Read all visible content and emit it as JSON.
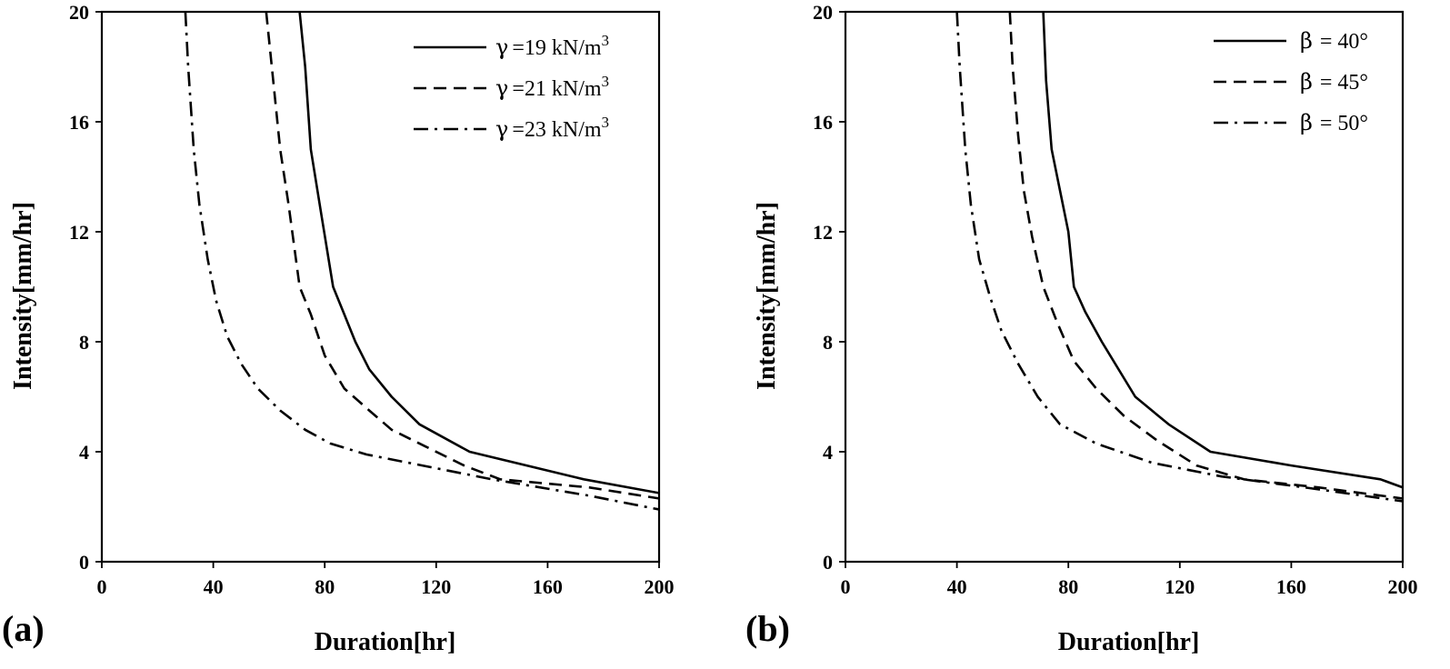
{
  "chart_data": [
    {
      "type": "line",
      "panel_label": "(a)",
      "xlabel": "Duration[hr]",
      "ylabel": "Intensity[mm/hr]",
      "xlim": [
        0,
        200
      ],
      "ylim": [
        0,
        20
      ],
      "xticks": [
        0,
        40,
        80,
        120,
        160,
        200
      ],
      "yticks": [
        0,
        4,
        8,
        12,
        16,
        20
      ],
      "grid": false,
      "legend_position": "top-right",
      "series": [
        {
          "name": "=19 kN/m",
          "symbol": "γ",
          "superscript": "3",
          "dash": "solid",
          "x": [
            71,
            73,
            75,
            79,
            83,
            87,
            91,
            96,
            104,
            114,
            132,
            173,
            200
          ],
          "y": [
            20,
            18,
            15,
            12.5,
            10,
            9,
            8,
            7,
            6,
            5,
            4,
            3,
            2.5
          ]
        },
        {
          "name": "=21 kN/m",
          "symbol": "γ",
          "superscript": "3",
          "dash": "dashed",
          "x": [
            59,
            61,
            64,
            67,
            71,
            75,
            80,
            87,
            96,
            104,
            116,
            130,
            143,
            175,
            200
          ],
          "y": [
            20,
            18,
            15,
            13,
            10,
            9,
            7.5,
            6.3,
            5.5,
            4.8,
            4.2,
            3.5,
            3.0,
            2.7,
            2.3
          ]
        },
        {
          "name": "=23 kN/m",
          "symbol": "γ",
          "superscript": "3",
          "dash": "dashdot",
          "x": [
            30,
            31,
            33,
            35,
            38,
            41,
            45,
            50,
            56,
            64,
            73,
            82,
            95,
            115,
            140,
            175,
            200
          ],
          "y": [
            20,
            18,
            15,
            13,
            11,
            9.5,
            8.2,
            7.2,
            6.3,
            5.5,
            4.8,
            4.3,
            3.9,
            3.5,
            3.0,
            2.4,
            1.9
          ]
        }
      ]
    },
    {
      "type": "line",
      "panel_label": "(b)",
      "xlabel": "Duration[hr]",
      "ylabel": "Intensity[mm/hr]",
      "xlim": [
        0,
        200
      ],
      "ylim": [
        0,
        20
      ],
      "xticks": [
        0,
        40,
        80,
        120,
        160,
        200
      ],
      "yticks": [
        0,
        4,
        8,
        12,
        16,
        20
      ],
      "grid": false,
      "legend_position": "top-right",
      "series": [
        {
          "name": "= 40°",
          "symbol": "β",
          "dash": "solid",
          "x": [
            71,
            72,
            74,
            77,
            80,
            82,
            86,
            92,
            104,
            116,
            131,
            160,
            192,
            200
          ],
          "y": [
            20,
            17.5,
            15,
            13.5,
            12,
            10,
            9.1,
            8,
            6,
            5,
            4,
            3.5,
            3,
            2.7
          ]
        },
        {
          "name": "= 45°",
          "symbol": "β",
          "dash": "dashed",
          "x": [
            59,
            60,
            62,
            64,
            67,
            71,
            76,
            82,
            90,
            100,
            112,
            126,
            143,
            170,
            200
          ],
          "y": [
            20,
            18,
            15.5,
            13.5,
            11.8,
            10,
            8.7,
            7.3,
            6.3,
            5.3,
            4.4,
            3.5,
            3.0,
            2.7,
            2.3
          ]
        },
        {
          "name": "= 50°",
          "symbol": "β",
          "dash": "dashdot",
          "x": [
            40,
            41,
            43,
            45,
            48,
            52,
            56,
            62,
            69,
            77,
            90,
            110,
            135,
            165,
            200
          ],
          "y": [
            20,
            18,
            15,
            13,
            11,
            9.6,
            8.4,
            7.2,
            6.0,
            5.0,
            4.3,
            3.6,
            3.1,
            2.7,
            2.2
          ]
        }
      ]
    }
  ]
}
